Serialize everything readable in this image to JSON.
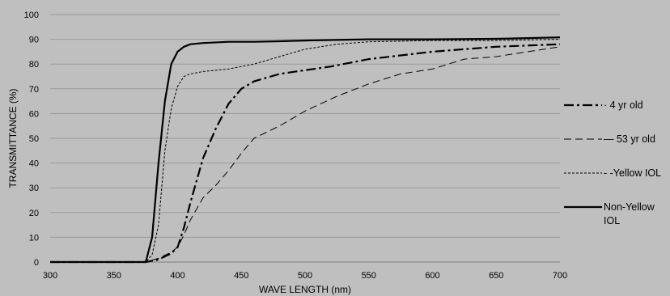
{
  "chart_data": {
    "type": "line",
    "title": "",
    "xlabel": "WAVE LENGTH (nm)",
    "ylabel": "TRANSMITTANCE (%)",
    "xlim": [
      300,
      700
    ],
    "ylim": [
      0,
      100
    ],
    "xticks": [
      300,
      350,
      400,
      450,
      500,
      550,
      600,
      650,
      700
    ],
    "yticks": [
      0,
      10,
      20,
      30,
      40,
      50,
      60,
      70,
      80,
      90,
      100
    ],
    "grid": "horizontal",
    "legend_position": "right",
    "series": [
      {
        "name": "4 yr old",
        "legend_lines": [
          "· 4 yr old"
        ],
        "style": "dash-dot",
        "color": "#000000",
        "points": [
          [
            300,
            0
          ],
          [
            370,
            0
          ],
          [
            375,
            0
          ],
          [
            385,
            1
          ],
          [
            395,
            3.5
          ],
          [
            400,
            6
          ],
          [
            405,
            14
          ],
          [
            410,
            24
          ],
          [
            415,
            33
          ],
          [
            420,
            42
          ],
          [
            430,
            54
          ],
          [
            440,
            64
          ],
          [
            450,
            70
          ],
          [
            460,
            73
          ],
          [
            480,
            76
          ],
          [
            500,
            77.5
          ],
          [
            520,
            79
          ],
          [
            550,
            82
          ],
          [
            600,
            85
          ],
          [
            650,
            87
          ],
          [
            700,
            88
          ]
        ]
      },
      {
        "name": "53 yr old",
        "legend_lines": [
          "— 53 yr old"
        ],
        "style": "long-dash",
        "color": "#000000",
        "points": [
          [
            300,
            0
          ],
          [
            370,
            0
          ],
          [
            375,
            0
          ],
          [
            385,
            1.5
          ],
          [
            395,
            4
          ],
          [
            400,
            6
          ],
          [
            405,
            11
          ],
          [
            410,
            17
          ],
          [
            420,
            26
          ],
          [
            430,
            31
          ],
          [
            440,
            37
          ],
          [
            450,
            44
          ],
          [
            460,
            50
          ],
          [
            480,
            55
          ],
          [
            500,
            61
          ],
          [
            525,
            67
          ],
          [
            550,
            72
          ],
          [
            575,
            76
          ],
          [
            600,
            78
          ],
          [
            625,
            82
          ],
          [
            650,
            83
          ],
          [
            675,
            85
          ],
          [
            700,
            87
          ]
        ]
      },
      {
        "name": "Yellow IOL",
        "legend_lines": [
          "- -Yellow IOL"
        ],
        "style": "short-dash",
        "color": "#000000",
        "points": [
          [
            300,
            0
          ],
          [
            370,
            0
          ],
          [
            375,
            0
          ],
          [
            380,
            3
          ],
          [
            385,
            15
          ],
          [
            390,
            45
          ],
          [
            395,
            62
          ],
          [
            400,
            71
          ],
          [
            405,
            75
          ],
          [
            410,
            76
          ],
          [
            420,
            77
          ],
          [
            440,
            78
          ],
          [
            460,
            80
          ],
          [
            480,
            83
          ],
          [
            500,
            86
          ],
          [
            525,
            88
          ],
          [
            550,
            89
          ],
          [
            600,
            89.5
          ],
          [
            650,
            89.5
          ],
          [
            700,
            90
          ]
        ]
      },
      {
        "name": "Non-Yellow IOL",
        "legend_lines": [
          "Non-Yellow",
          "IOL"
        ],
        "style": "solid",
        "color": "#000000",
        "points": [
          [
            300,
            0
          ],
          [
            370,
            0
          ],
          [
            375,
            0
          ],
          [
            380,
            10
          ],
          [
            385,
            40
          ],
          [
            390,
            65
          ],
          [
            395,
            80
          ],
          [
            400,
            85
          ],
          [
            405,
            87
          ],
          [
            410,
            88
          ],
          [
            420,
            88.5
          ],
          [
            440,
            89
          ],
          [
            460,
            89
          ],
          [
            480,
            89.2
          ],
          [
            500,
            89.5
          ],
          [
            550,
            90
          ],
          [
            600,
            90
          ],
          [
            650,
            90.2
          ],
          [
            700,
            90.8
          ]
        ]
      }
    ]
  }
}
